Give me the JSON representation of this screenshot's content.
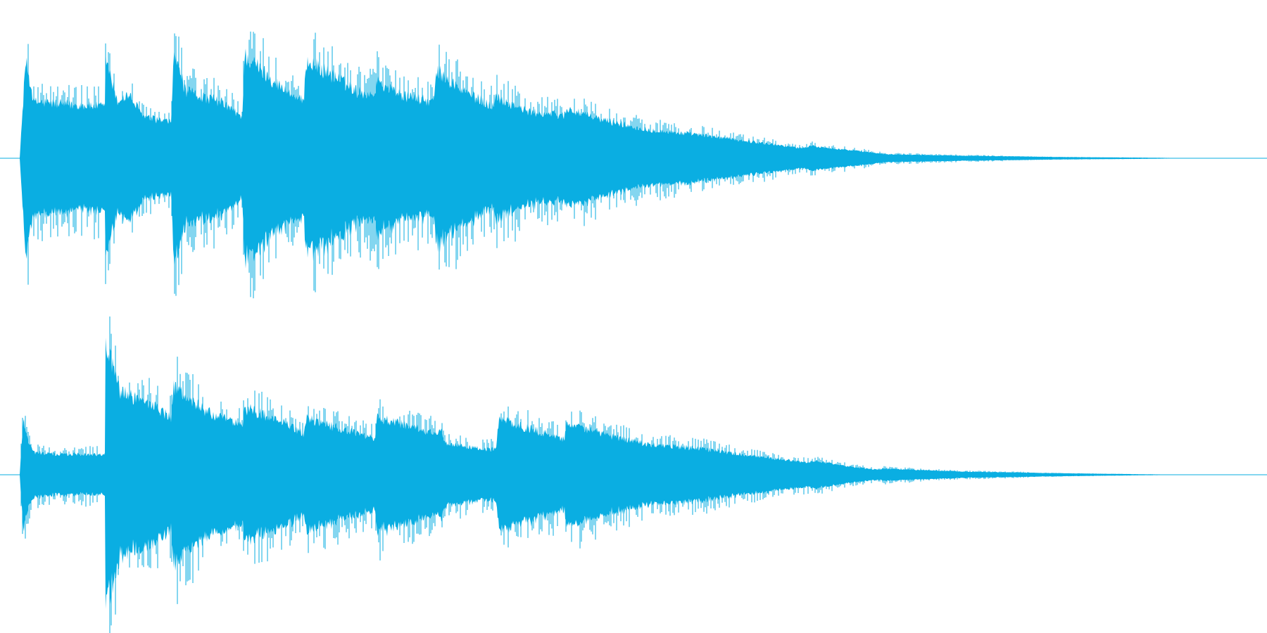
{
  "waveform": {
    "color": "#0aaee2",
    "background": "#ffffff",
    "channels": [
      {
        "name": "channel-1",
        "envelope_points": [
          [
            0.0,
            0.0
          ],
          [
            0.005,
            0.95
          ],
          [
            0.012,
            0.55
          ],
          [
            0.045,
            0.52
          ],
          [
            0.072,
            0.5
          ],
          [
            0.0725,
            1.0
          ],
          [
            0.082,
            0.55
          ],
          [
            0.092,
            0.62
          ],
          [
            0.105,
            0.4
          ],
          [
            0.128,
            0.35
          ],
          [
            0.13,
            1.05
          ],
          [
            0.14,
            0.65
          ],
          [
            0.17,
            0.55
          ],
          [
            0.188,
            0.4
          ],
          [
            0.19,
            1.0
          ],
          [
            0.205,
            0.85
          ],
          [
            0.225,
            0.65
          ],
          [
            0.24,
            0.55
          ],
          [
            0.242,
            0.95
          ],
          [
            0.265,
            0.8
          ],
          [
            0.285,
            0.65
          ],
          [
            0.3,
            0.62
          ],
          [
            0.302,
            0.75
          ],
          [
            0.325,
            0.6
          ],
          [
            0.35,
            0.55
          ],
          [
            0.352,
            0.85
          ],
          [
            0.375,
            0.65
          ],
          [
            0.4,
            0.5
          ],
          [
            0.402,
            0.6
          ],
          [
            0.43,
            0.45
          ],
          [
            0.46,
            0.42
          ],
          [
            0.462,
            0.48
          ],
          [
            0.49,
            0.38
          ],
          [
            0.53,
            0.28
          ],
          [
            0.58,
            0.22
          ],
          [
            0.62,
            0.16
          ],
          [
            0.66,
            0.1
          ],
          [
            0.67,
            0.12
          ],
          [
            0.7,
            0.08
          ],
          [
            0.725,
            0.05
          ],
          [
            0.73,
            0.04
          ],
          [
            0.8,
            0.025
          ],
          [
            0.88,
            0.012
          ],
          [
            0.95,
            0.006
          ],
          [
            1.0,
            0.0
          ]
        ]
      },
      {
        "name": "channel-2",
        "envelope_points": [
          [
            0.0,
            0.0
          ],
          [
            0.003,
            0.55
          ],
          [
            0.008,
            0.3
          ],
          [
            0.012,
            0.22
          ],
          [
            0.03,
            0.2
          ],
          [
            0.072,
            0.2
          ],
          [
            0.0725,
            1.3
          ],
          [
            0.085,
            0.8
          ],
          [
            0.11,
            0.7
          ],
          [
            0.128,
            0.55
          ],
          [
            0.13,
            0.85
          ],
          [
            0.16,
            0.6
          ],
          [
            0.188,
            0.48
          ],
          [
            0.19,
            0.65
          ],
          [
            0.215,
            0.55
          ],
          [
            0.24,
            0.4
          ],
          [
            0.242,
            0.55
          ],
          [
            0.27,
            0.45
          ],
          [
            0.3,
            0.35
          ],
          [
            0.302,
            0.55
          ],
          [
            0.33,
            0.48
          ],
          [
            0.35,
            0.4
          ],
          [
            0.355,
            0.45
          ],
          [
            0.36,
            0.3
          ],
          [
            0.39,
            0.25
          ],
          [
            0.402,
            0.25
          ],
          [
            0.405,
            0.55
          ],
          [
            0.43,
            0.45
          ],
          [
            0.46,
            0.35
          ],
          [
            0.462,
            0.5
          ],
          [
            0.49,
            0.4
          ],
          [
            0.53,
            0.3
          ],
          [
            0.58,
            0.25
          ],
          [
            0.62,
            0.18
          ],
          [
            0.665,
            0.12
          ],
          [
            0.67,
            0.14
          ],
          [
            0.7,
            0.08
          ],
          [
            0.725,
            0.05
          ],
          [
            0.73,
            0.06
          ],
          [
            0.8,
            0.03
          ],
          [
            0.88,
            0.015
          ],
          [
            0.95,
            0.005
          ],
          [
            1.0,
            0.0
          ]
        ]
      }
    ]
  }
}
